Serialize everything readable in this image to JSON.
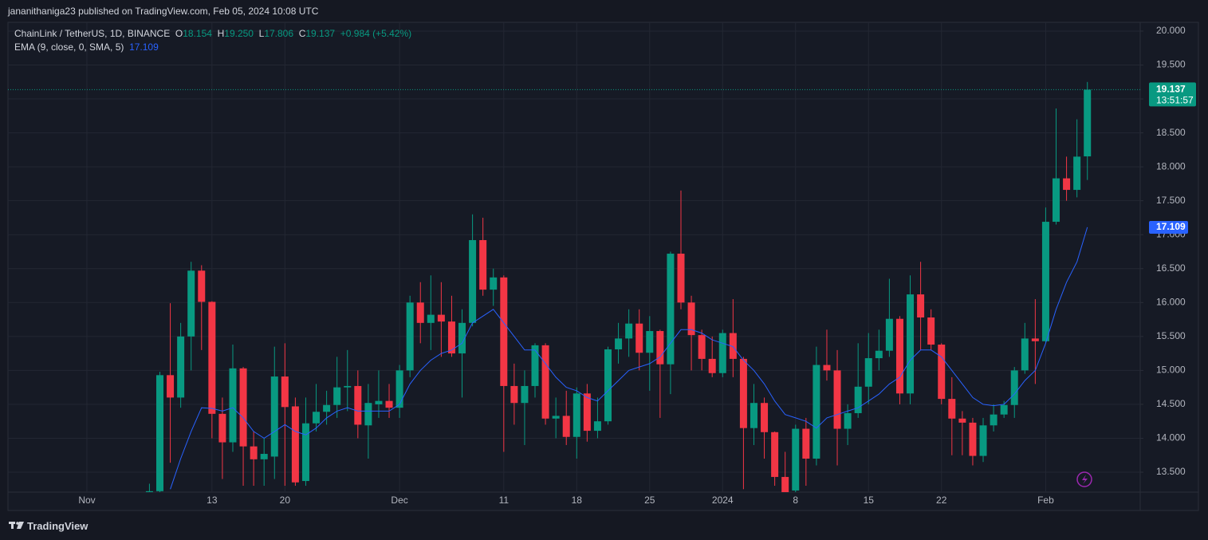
{
  "header": {
    "published": "jananithaniga23 published on TradingView.com, Feb 05, 2024 10:08 UTC"
  },
  "footer": {
    "brand": "TradingView"
  },
  "chart_data": {
    "type": "candlestick",
    "symbol": "ChainLink / TetherUS, 1D, BINANCE",
    "ohlc_names": [
      "O",
      "H",
      "L",
      "C"
    ],
    "ohlc_value_labels": [
      "18.154",
      "19.250",
      "17.806",
      "19.137"
    ],
    "change": "+0.984 (+5.42%)",
    "indicator_name": "EMA (9, close, 0, SMA, 5)",
    "countdown": "13:51:57",
    "up_color": "#089981",
    "down_color": "#f23645",
    "ema_color": "#2962ff",
    "grid": true,
    "ylim": [
      13.206,
      20.129
    ],
    "yticks": [
      {
        "value": 13.5,
        "label": "13.500"
      },
      {
        "value": 14,
        "label": "14.000"
      },
      {
        "value": 14.5,
        "label": "14.500"
      },
      {
        "value": 15,
        "label": "15.000"
      },
      {
        "value": 15.5,
        "label": "15.500"
      },
      {
        "value": 16,
        "label": "16.000"
      },
      {
        "value": 16.5,
        "label": "16.500"
      },
      {
        "value": 17,
        "label": "17.000"
      },
      {
        "value": 17.5,
        "label": "17.500"
      },
      {
        "value": 18,
        "label": "18.000"
      },
      {
        "value": 18.5,
        "label": "18.500"
      },
      {
        "value": 19,
        "label": "19.000"
      },
      {
        "value": 19.5,
        "label": "19.500"
      },
      {
        "value": 20,
        "label": "20.000"
      }
    ],
    "categories": [
      "Nov",
      null,
      null,
      null,
      null,
      null,
      null,
      null,
      null,
      null,
      null,
      null,
      "13",
      null,
      null,
      null,
      null,
      null,
      null,
      "20",
      null,
      null,
      null,
      null,
      null,
      null,
      null,
      null,
      null,
      null,
      "Dec",
      null,
      null,
      null,
      null,
      null,
      null,
      null,
      null,
      null,
      "11",
      null,
      null,
      null,
      null,
      null,
      null,
      "18",
      null,
      null,
      null,
      null,
      null,
      null,
      "25",
      null,
      null,
      null,
      null,
      null,
      null,
      "2024",
      null,
      null,
      null,
      null,
      null,
      null,
      "8",
      null,
      null,
      null,
      null,
      null,
      null,
      "15",
      null,
      null,
      null,
      null,
      null,
      null,
      "22",
      null,
      null,
      null,
      null,
      null,
      null,
      null,
      null,
      null,
      "Feb",
      null,
      null,
      null,
      null
    ],
    "open": [
      null,
      null,
      null,
      null,
      null,
      null,
      12.95,
      13.22,
      14.93,
      14.6,
      15.5,
      16.47,
      16.01,
      14.36,
      13.94,
      15.03,
      13.88,
      13.69,
      13.73,
      14.91,
      14.47,
      13.37,
      14.22,
      14.39,
      14.49,
      14.75,
      14.77,
      14.19,
      14.5,
      14.55,
      14.45,
      15.0,
      16.0,
      15.7,
      15.82,
      15.72,
      15.25,
      15.7,
      16.92,
      16.19,
      16.37,
      14.77,
      14.52,
      14.77,
      15.37,
      14.29,
      14.33,
      14.02,
      14.66,
      14.11,
      14.25,
      15.31,
      15.47,
      15.69,
      15.26,
      15.58,
      15.09,
      16.72,
      16.0,
      15.52,
      15.17,
      14.96,
      15.55,
      15.17,
      14.15,
      14.52,
      14.09,
      13.43,
      13.23,
      14.14,
      13.7,
      15.08,
      15.0,
      14.14,
      14.37,
      14.76,
      15.18,
      15.29,
      15.76,
      14.66,
      16.12,
      15.78,
      15.38,
      14.58,
      14.29,
      14.23,
      13.74,
      14.19,
      14.35,
      14.49,
      15.0,
      15.47,
      15.43,
      17.19,
      17.83,
      17.66,
      18.154
    ],
    "high": [
      null,
      null,
      null,
      null,
      null,
      null,
      13.33,
      14.98,
      15.99,
      15.7,
      16.6,
      16.55,
      16.02,
      14.6,
      15.38,
      15.05,
      14.1,
      14.0,
      15.35,
      15.4,
      14.6,
      14.6,
      14.8,
      14.7,
      15.2,
      15.3,
      15.0,
      14.8,
      15.0,
      14.8,
      15.08,
      16.1,
      16.3,
      16.4,
      16.3,
      16.1,
      15.9,
      17.3,
      17.25,
      16.5,
      16.4,
      15.1,
      15.0,
      15.4,
      15.4,
      14.6,
      14.7,
      14.75,
      14.8,
      14.6,
      15.35,
      15.7,
      15.9,
      15.9,
      15.8,
      15.6,
      16.75,
      17.65,
      16.1,
      15.6,
      15.5,
      15.6,
      16.05,
      15.2,
      14.8,
      14.6,
      14.1,
      13.8,
      14.2,
      14.3,
      15.35,
      15.6,
      15.3,
      14.5,
      15.4,
      15.55,
      15.6,
      16.35,
      15.8,
      16.4,
      16.6,
      15.9,
      15.4,
      14.9,
      14.4,
      14.3,
      14.3,
      14.5,
      14.55,
      15.05,
      15.7,
      16.05,
      17.4,
      18.86,
      18.15,
      18.7,
      19.25
    ],
    "low": [
      null,
      null,
      null,
      null,
      null,
      null,
      12.8,
      13.1,
      13.64,
      14.45,
      15.0,
      15.3,
      14.0,
      13.4,
      13.8,
      13.3,
      13.3,
      13.3,
      13.4,
      13.3,
      13.3,
      13.3,
      14.1,
      14.2,
      14.3,
      14.4,
      14.0,
      13.7,
      14.3,
      14.3,
      14.3,
      14.9,
      15.4,
      15.3,
      15.2,
      15.2,
      14.6,
      15.65,
      16.1,
      15.95,
      13.8,
      14.2,
      13.9,
      14.6,
      14.2,
      14.0,
      13.9,
      13.7,
      13.95,
      14.0,
      14.2,
      15.1,
      15.2,
      15.0,
      14.7,
      14.3,
      14.65,
      15.9,
      15.0,
      15.0,
      14.9,
      14.9,
      14.9,
      13.25,
      13.9,
      13.7,
      13.3,
      13.0,
      13.1,
      13.3,
      13.6,
      14.85,
      13.6,
      13.9,
      14.3,
      14.5,
      15.0,
      15.2,
      14.5,
      14.5,
      15.3,
      15.3,
      14.5,
      13.75,
      13.75,
      13.6,
      13.65,
      14.1,
      14.3,
      14.3,
      14.95,
      14.8,
      15.4,
      17.15,
      17.5,
      17.55,
      17.806
    ],
    "close": [
      null,
      null,
      null,
      null,
      null,
      null,
      13.22,
      14.93,
      14.6,
      15.5,
      16.47,
      16.01,
      14.36,
      13.94,
      15.03,
      13.88,
      13.69,
      13.77,
      14.91,
      14.46,
      13.35,
      14.22,
      14.39,
      14.49,
      14.75,
      14.77,
      14.2,
      14.52,
      14.55,
      14.45,
      15.0,
      16.0,
      15.7,
      15.82,
      15.72,
      15.25,
      15.7,
      16.92,
      16.19,
      16.37,
      14.77,
      14.52,
      14.77,
      15.37,
      14.29,
      14.33,
      14.02,
      14.66,
      14.11,
      14.25,
      15.31,
      15.47,
      15.69,
      15.26,
      15.58,
      15.09,
      16.72,
      16.0,
      15.52,
      15.17,
      14.96,
      15.55,
      15.17,
      14.15,
      14.52,
      14.09,
      13.43,
      13.2,
      14.14,
      13.7,
      15.08,
      15.0,
      14.14,
      14.37,
      14.76,
      15.18,
      15.29,
      15.76,
      14.66,
      16.12,
      15.78,
      15.38,
      14.58,
      14.29,
      14.23,
      13.74,
      14.19,
      14.35,
      14.49,
      15.0,
      15.47,
      15.43,
      17.19,
      17.83,
      17.66,
      18.15,
      19.137
    ],
    "ema": [
      null,
      null,
      null,
      null,
      null,
      null,
      null,
      null,
      13.25,
      13.7,
      14.1,
      14.45,
      14.44,
      14.4,
      14.45,
      14.3,
      14.1,
      14.0,
      14.1,
      14.2,
      14.1,
      14.05,
      14.15,
      14.3,
      14.4,
      14.45,
      14.4,
      14.4,
      14.4,
      14.4,
      14.5,
      14.8,
      15.0,
      15.15,
      15.25,
      15.3,
      15.4,
      15.7,
      15.8,
      15.9,
      15.7,
      15.5,
      15.3,
      15.3,
      15.1,
      14.9,
      14.75,
      14.7,
      14.6,
      14.55,
      14.7,
      14.85,
      15.0,
      15.05,
      15.1,
      15.2,
      15.4,
      15.6,
      15.6,
      15.55,
      15.45,
      15.4,
      15.35,
      15.15,
      15.0,
      14.8,
      14.55,
      14.35,
      14.3,
      14.25,
      14.15,
      14.3,
      14.35,
      14.4,
      14.45,
      14.55,
      14.65,
      14.8,
      14.9,
      15.15,
      15.3,
      15.3,
      15.2,
      15.0,
      14.8,
      14.6,
      14.5,
      14.48,
      14.5,
      14.65,
      14.85,
      15.0,
      15.4,
      15.9,
      16.3,
      16.6,
      17.109
    ]
  }
}
